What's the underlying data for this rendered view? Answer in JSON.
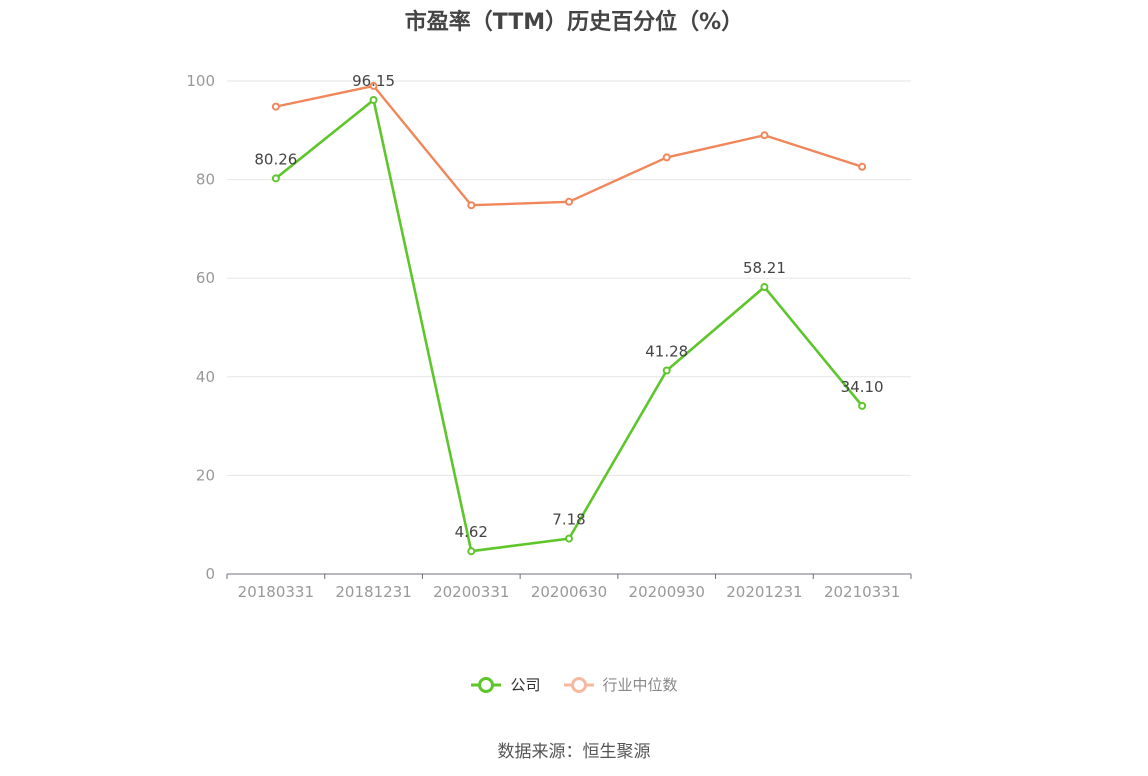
{
  "chart_data": {
    "type": "line",
    "title": "市盈率（TTM）历史百分位（%）",
    "xlabel": "",
    "ylabel": "",
    "categories": [
      "20180331",
      "20181231",
      "20200331",
      "20200630",
      "20200930",
      "20201231",
      "20210331"
    ],
    "ylim": [
      0,
      100
    ],
    "yticks": [
      0,
      20,
      40,
      60,
      80,
      100
    ],
    "grid": true,
    "legend_position": "bottom",
    "series": [
      {
        "name": "公司",
        "color": "#5ec62b",
        "values": [
          80.26,
          96.15,
          4.62,
          7.18,
          41.28,
          58.21,
          34.1
        ],
        "labels": [
          "80.26",
          "96.15",
          "4.62",
          "7.18",
          "41.28",
          "58.21",
          "34.10"
        ]
      },
      {
        "name": "行业中位数",
        "color": "#f0865a",
        "values": [
          94.8,
          99.0,
          74.8,
          75.5,
          84.5,
          89.0,
          82.6
        ]
      }
    ]
  },
  "legend": {
    "company": "公司",
    "industry": "行业中位数"
  },
  "source_note": "数据来源：恒生聚源"
}
